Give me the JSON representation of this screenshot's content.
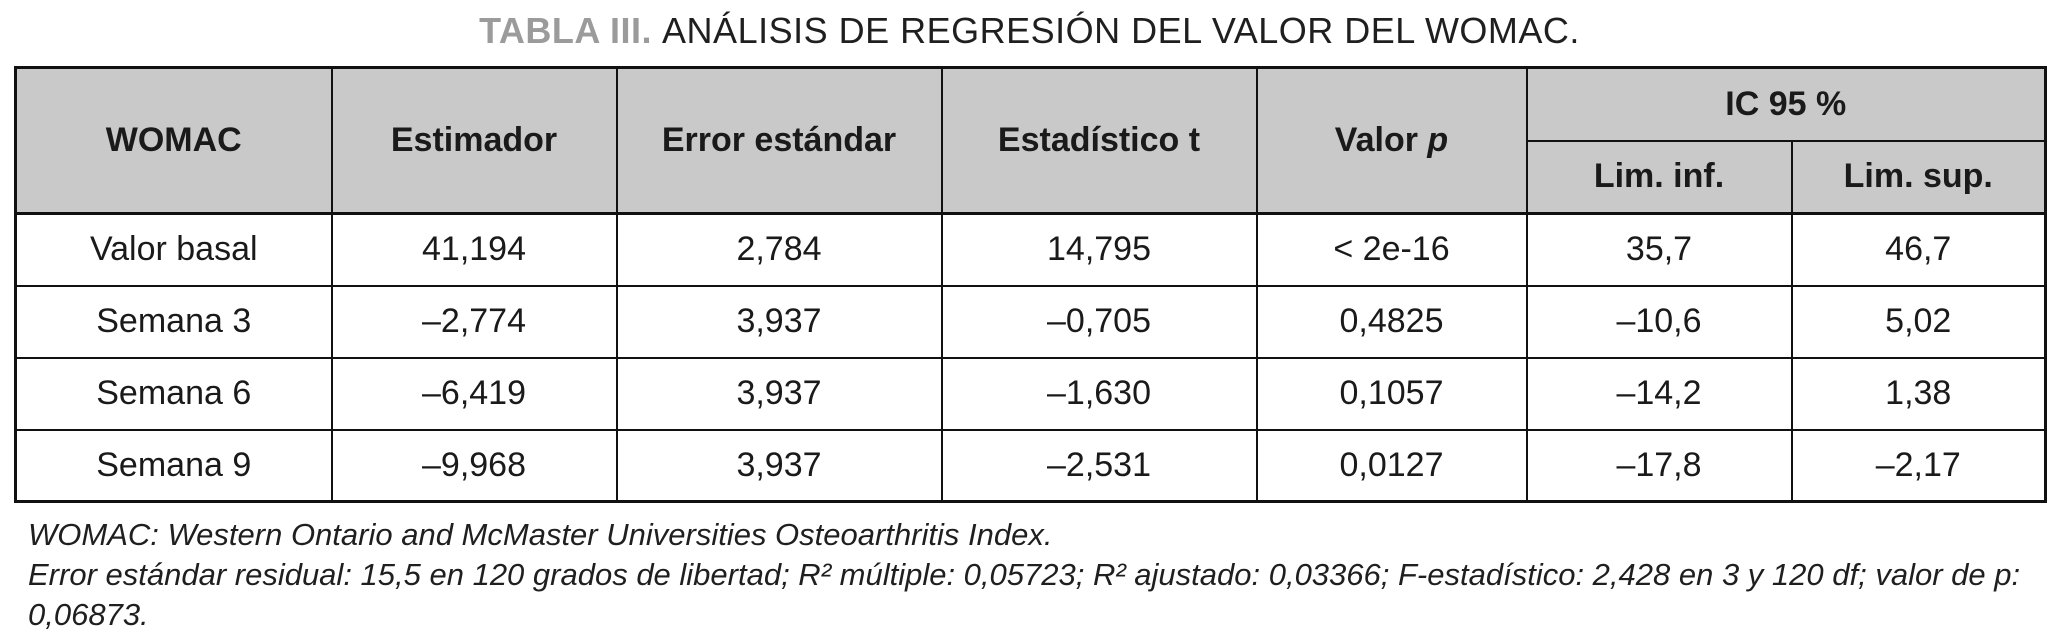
{
  "title": {
    "label": "TABLA III.",
    "text": "ANÁLISIS DE REGRESIÓN DEL VALOR DEL WOMAC."
  },
  "table": {
    "headers": {
      "womac": "WOMAC",
      "estimador": "Estimador",
      "error_estandar": "Error estándar",
      "estadistico_t": "Estadístico t",
      "valor_p": "Valor",
      "valor_p_var": "p",
      "ic95": "IC 95 %",
      "lim_inf": "Lim. inf.",
      "lim_sup": "Lim. sup."
    },
    "rows": [
      {
        "womac": "Valor basal",
        "estimador": "41,194",
        "error_estandar": "2,784",
        "estadistico_t": "14,795",
        "valor_p": "< 2e-16",
        "lim_inf": "35,7",
        "lim_sup": "46,7"
      },
      {
        "womac": "Semana 3",
        "estimador": "–2,774",
        "error_estandar": "3,937",
        "estadistico_t": "–0,705",
        "valor_p": "0,4825",
        "lim_inf": "–10,6",
        "lim_sup": "5,02"
      },
      {
        "womac": "Semana 6",
        "estimador": "–6,419",
        "error_estandar": "3,937",
        "estadistico_t": "–1,630",
        "valor_p": "0,1057",
        "lim_inf": "–14,2",
        "lim_sup": "1,38"
      },
      {
        "womac": "Semana 9",
        "estimador": "–9,968",
        "error_estandar": "3,937",
        "estadistico_t": "–2,531",
        "valor_p": "0,0127",
        "lim_inf": "–17,8",
        "lim_sup": "–2,17"
      }
    ]
  },
  "footnotes": [
    "WOMAC: Western Ontario and McMaster Universities Osteoarthritis Index.",
    "Error estándar residual: 15,5 en 120 grados de libertad; R² múltiple: 0,05723; R² ajustado: 0,03366; F-estadístico: 2,428 en 3 y 120 df; valor de p: 0,06873."
  ]
}
